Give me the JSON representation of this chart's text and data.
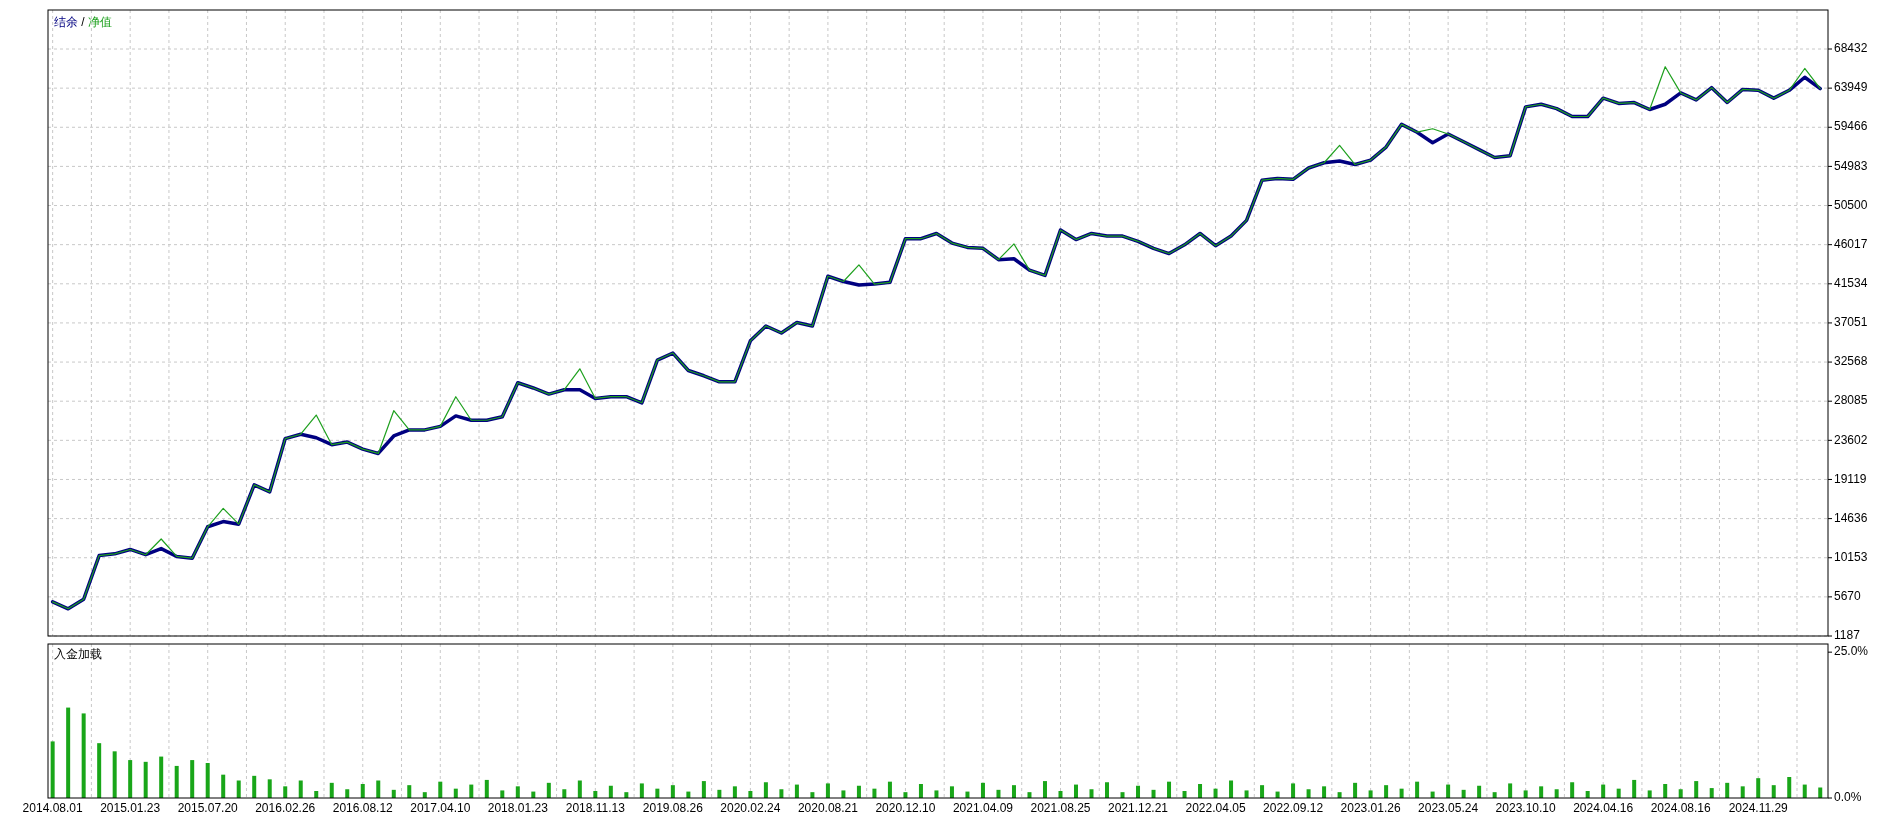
{
  "chart_data": [
    {
      "type": "line",
      "legend": "top left",
      "grid": true,
      "tick_labels": "y",
      "annotations": [
        "/"
      ],
      "categories": [
        "2014.08.01",
        null,
        null,
        null,
        null,
        "2015.01.23",
        null,
        null,
        null,
        null,
        "2015.07.20",
        null,
        null,
        null,
        null,
        "2016.02.26",
        null,
        null,
        null,
        null,
        "2016.08.12",
        null,
        null,
        null,
        null,
        "2017.04.10",
        null,
        null,
        null,
        null,
        "2018.01.23",
        null,
        null,
        null,
        null,
        "2018.11.13",
        null,
        null,
        null,
        null,
        "2019.08.26",
        null,
        null,
        null,
        null,
        "2020.02.24",
        null,
        null,
        null,
        null,
        "2020.08.21",
        null,
        null,
        null,
        null,
        "2020.12.10",
        null,
        null,
        null,
        null,
        "2021.04.09",
        null,
        null,
        null,
        null,
        "2021.08.25",
        null,
        null,
        null,
        null,
        "2021.12.21",
        null,
        null,
        null,
        null,
        "2022.04.05",
        null,
        null,
        null,
        null,
        "2022.09.12",
        null,
        null,
        null,
        null,
        "2023.01.26",
        null,
        null,
        null,
        null,
        "2023.05.24",
        null,
        null,
        null,
        null,
        "2023.10.10",
        null,
        null,
        null,
        null,
        "2024.04.16",
        null,
        null,
        null,
        null,
        "2024.08.16",
        null,
        null,
        null,
        null,
        "2024.11.29",
        null,
        null,
        null,
        null
      ],
      "ylim": [
        1187,
        72900
      ],
      "yticks": [
        1187,
        5670,
        10153,
        14636,
        19119,
        23602,
        28085,
        32568,
        37051,
        41534,
        46017,
        50500,
        54983,
        59466,
        63949,
        68432
      ],
      "series": [
        {
          "name": "结余",
          "color": "#000080",
          "values": [
            5100,
            4300,
            5400,
            10400,
            10600,
            11100,
            10500,
            11200,
            10300,
            10100,
            13700,
            14300,
            14000,
            18500,
            17700,
            23800,
            24300,
            23900,
            23100,
            23400,
            22600,
            22100,
            24100,
            24800,
            24800,
            25200,
            26400,
            25900,
            25900,
            26300,
            30200,
            29600,
            28900,
            29400,
            29400,
            28400,
            28600,
            28600,
            27900,
            32800,
            33600,
            31600,
            31000,
            30300,
            30300,
            35000,
            36700,
            35900,
            37100,
            36700,
            42400,
            41800,
            41400,
            41500,
            41700,
            46700,
            46700,
            47300,
            46200,
            45700,
            45600,
            44300,
            44400,
            43100,
            42500,
            47700,
            46600,
            47300,
            47000,
            47000,
            46400,
            45600,
            45000,
            46000,
            47300,
            45900,
            47000,
            48800,
            53400,
            53600,
            53500,
            54800,
            55400,
            55600,
            55200,
            55700,
            57200,
            59800,
            58900,
            57700,
            58700,
            57800,
            56900,
            56000,
            56200,
            61800,
            62100,
            61600,
            60700,
            60700,
            62800,
            62200,
            62300,
            61500,
            62100,
            63400,
            62600,
            64000,
            62300,
            63800,
            63700,
            62800,
            63700,
            65200,
            63900
          ]
        },
        {
          "name": "净值",
          "color": "#1ea01e",
          "values": [
            5100,
            4300,
            5400,
            10400,
            10600,
            11100,
            10500,
            12300,
            10300,
            10100,
            13700,
            15800,
            14000,
            18500,
            17700,
            23800,
            24300,
            26500,
            23100,
            23400,
            22600,
            22100,
            27000,
            24800,
            24800,
            25200,
            28600,
            25900,
            25900,
            26300,
            30200,
            29600,
            28900,
            29400,
            31800,
            28400,
            28600,
            28600,
            27900,
            32800,
            33600,
            31600,
            31000,
            30300,
            30300,
            35000,
            36700,
            35900,
            37100,
            36700,
            42400,
            41800,
            43700,
            41500,
            41700,
            46700,
            46700,
            47300,
            46200,
            45700,
            45600,
            44300,
            46100,
            43100,
            42500,
            47700,
            46600,
            47300,
            47000,
            47000,
            46400,
            45600,
            45000,
            46000,
            47300,
            45900,
            47000,
            48800,
            53400,
            53600,
            53500,
            54800,
            55400,
            57400,
            55200,
            55700,
            57200,
            59800,
            58900,
            59300,
            58700,
            57800,
            56900,
            56000,
            56200,
            61800,
            62100,
            61600,
            60700,
            60700,
            62800,
            62200,
            62300,
            61500,
            66400,
            63400,
            62600,
            64000,
            62300,
            63800,
            63700,
            62800,
            63700,
            66200,
            63900
          ]
        }
      ]
    },
    {
      "type": "bar",
      "title": "入金加载",
      "grid": "x",
      "categories": [
        "2014.08.01",
        null,
        null,
        null,
        null,
        "2015.01.23",
        null,
        null,
        null,
        null,
        "2015.07.20",
        null,
        null,
        null,
        null,
        "2016.02.26",
        null,
        null,
        null,
        null,
        "2016.08.12",
        null,
        null,
        null,
        null,
        "2017.04.10",
        null,
        null,
        null,
        null,
        "2018.01.23",
        null,
        null,
        null,
        null,
        "2018.11.13",
        null,
        null,
        null,
        null,
        "2019.08.26",
        null,
        null,
        null,
        null,
        "2020.02.24",
        null,
        null,
        null,
        null,
        "2020.08.21",
        null,
        null,
        null,
        null,
        "2020.12.10",
        null,
        null,
        null,
        null,
        "2021.04.09",
        null,
        null,
        null,
        null,
        "2021.08.25",
        null,
        null,
        null,
        null,
        "2021.12.21",
        null,
        null,
        null,
        null,
        "2022.04.05",
        null,
        null,
        null,
        null,
        "2022.09.12",
        null,
        null,
        null,
        null,
        "2023.01.26",
        null,
        null,
        null,
        null,
        "2023.05.24",
        null,
        null,
        null,
        null,
        "2023.10.10",
        null,
        null,
        null,
        null,
        "2024.04.16",
        null,
        null,
        null,
        null,
        "2024.08.16",
        null,
        null,
        null,
        null,
        "2024.11.29",
        null,
        null,
        null,
        null
      ],
      "ylim": [
        0,
        26.4
      ],
      "yticks": [
        {
          "value": 0,
          "label": "0.0%"
        },
        {
          "value": 25,
          "label": "25.0%"
        }
      ],
      "series": [
        {
          "color": "#19a619",
          "values": [
            9.7,
            15.5,
            14.5,
            9.4,
            8.0,
            6.5,
            6.2,
            7.1,
            5.5,
            6.5,
            6.0,
            4.0,
            3.0,
            3.8,
            3.2,
            2.0,
            3.0,
            1.2,
            2.6,
            1.5,
            2.4,
            3.0,
            1.4,
            2.2,
            1.0,
            2.8,
            1.6,
            2.3,
            3.1,
            1.3,
            2.0,
            1.1,
            2.6,
            1.5,
            3.0,
            1.2,
            2.1,
            1.0,
            2.5,
            1.6,
            2.2,
            1.1,
            2.9,
            1.4,
            2.0,
            1.2,
            2.7,
            1.5,
            2.3,
            1.0,
            2.5,
            1.3,
            2.1,
            1.6,
            2.8,
            1.0,
            2.4,
            1.3,
            2.0,
            1.1,
            2.6,
            1.4,
            2.2,
            1.0,
            2.9,
            1.2,
            2.3,
            1.5,
            2.7,
            1.0,
            2.1,
            1.4,
            2.8,
            1.2,
            2.4,
            1.6,
            3.0,
            1.3,
            2.2,
            1.1,
            2.5,
            1.5,
            2.0,
            1.0,
            2.6,
            1.3,
            2.2,
            1.6,
            2.8,
            1.1,
            2.3,
            1.4,
            2.1,
            1.0,
            2.5,
            1.3,
            2.0,
            1.5,
            2.7,
            1.2,
            2.3,
            1.6,
            3.1,
            1.3,
            2.4,
            1.5,
            2.9,
            1.7,
            2.6,
            2.0,
            3.4,
            2.2,
            3.6,
            2.3,
            1.8
          ]
        }
      ]
    }
  ]
}
